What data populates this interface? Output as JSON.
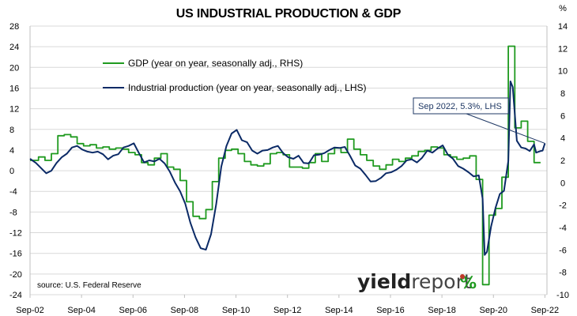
{
  "chart_data": {
    "type": "line",
    "title": "US INDUSTRIAL PRODUCTION & GDP",
    "right_axis_unit": "%",
    "y_left": {
      "range": [
        -24,
        28
      ],
      "ticks": [
        28,
        24,
        20,
        16,
        12,
        8,
        4,
        0,
        -4,
        -8,
        -12,
        -16,
        -20,
        -24
      ]
    },
    "y_right": {
      "range": [
        -10,
        14
      ],
      "ticks": [
        14,
        12,
        10,
        8,
        6,
        4,
        2,
        0,
        -2,
        -4,
        -6,
        -8,
        -10
      ]
    },
    "x_range": [
      2002.67,
      2022.75
    ],
    "x_ticks": [
      {
        "label": "Sep-02",
        "x": 2002.67
      },
      {
        "label": "Sep-04",
        "x": 2004.67
      },
      {
        "label": "Sep-06",
        "x": 2006.67
      },
      {
        "label": "Sep-08",
        "x": 2008.67
      },
      {
        "label": "Sep-10",
        "x": 2010.67
      },
      {
        "label": "Sep-12",
        "x": 2012.67
      },
      {
        "label": "Sep-14",
        "x": 2014.67
      },
      {
        "label": "Sep-16",
        "x": 2016.67
      },
      {
        "label": "Sep-18",
        "x": 2018.67
      },
      {
        "label": "Sep-20",
        "x": 2020.67
      },
      {
        "label": "Sep-22",
        "x": 2022.67
      }
    ],
    "grid": "horizontal",
    "legend_position": "top-left",
    "series": [
      {
        "name": "GDP (year on year, seasonally adj., RHS)",
        "axis": "right",
        "color": "#1f9a1f",
        "step": true,
        "points": [
          [
            2002.67,
            2.0
          ],
          [
            2003.0,
            2.3
          ],
          [
            2003.25,
            2.0
          ],
          [
            2003.5,
            2.6
          ],
          [
            2003.75,
            4.2
          ],
          [
            2004.0,
            4.3
          ],
          [
            2004.25,
            4.1
          ],
          [
            2004.5,
            3.5
          ],
          [
            2004.75,
            3.3
          ],
          [
            2005.0,
            3.4
          ],
          [
            2005.25,
            3.1
          ],
          [
            2005.5,
            3.2
          ],
          [
            2005.75,
            3.0
          ],
          [
            2006.0,
            3.1
          ],
          [
            2006.25,
            3.0
          ],
          [
            2006.5,
            2.7
          ],
          [
            2006.75,
            2.5
          ],
          [
            2007.0,
            1.8
          ],
          [
            2007.25,
            1.6
          ],
          [
            2007.5,
            2.2
          ],
          [
            2007.75,
            2.6
          ],
          [
            2008.0,
            1.4
          ],
          [
            2008.25,
            1.2
          ],
          [
            2008.5,
            0.2
          ],
          [
            2008.75,
            -1.7
          ],
          [
            2009.0,
            -3.0
          ],
          [
            2009.25,
            -3.2
          ],
          [
            2009.5,
            -2.4
          ],
          [
            2009.75,
            0.1
          ],
          [
            2010.0,
            2.2
          ],
          [
            2010.25,
            2.9
          ],
          [
            2010.5,
            3.0
          ],
          [
            2010.75,
            2.6
          ],
          [
            2011.0,
            1.9
          ],
          [
            2011.25,
            1.6
          ],
          [
            2011.5,
            1.5
          ],
          [
            2011.75,
            1.7
          ],
          [
            2012.0,
            2.6
          ],
          [
            2012.25,
            2.7
          ],
          [
            2012.5,
            2.5
          ],
          [
            2012.75,
            1.4
          ],
          [
            2013.0,
            1.4
          ],
          [
            2013.25,
            1.3
          ],
          [
            2013.5,
            1.8
          ],
          [
            2013.75,
            2.6
          ],
          [
            2014.0,
            1.9
          ],
          [
            2014.25,
            2.6
          ],
          [
            2014.5,
            3.1
          ],
          [
            2014.75,
            2.7
          ],
          [
            2015.0,
            3.9
          ],
          [
            2015.25,
            3.0
          ],
          [
            2015.5,
            2.5
          ],
          [
            2015.75,
            2.0
          ],
          [
            2016.0,
            1.5
          ],
          [
            2016.25,
            1.2
          ],
          [
            2016.5,
            1.6
          ],
          [
            2016.75,
            2.1
          ],
          [
            2017.0,
            1.9
          ],
          [
            2017.25,
            2.2
          ],
          [
            2017.5,
            2.4
          ],
          [
            2017.75,
            2.8
          ],
          [
            2018.0,
            2.9
          ],
          [
            2018.25,
            3.2
          ],
          [
            2018.5,
            3.1
          ],
          [
            2018.75,
            2.5
          ],
          [
            2019.0,
            2.3
          ],
          [
            2019.25,
            2.1
          ],
          [
            2019.5,
            2.2
          ],
          [
            2019.75,
            2.4
          ],
          [
            2020.0,
            0.3
          ],
          [
            2020.25,
            -9.1
          ],
          [
            2020.5,
            -2.9
          ],
          [
            2020.75,
            -2.3
          ],
          [
            2021.0,
            0.5
          ],
          [
            2021.25,
            12.2
          ],
          [
            2021.5,
            4.9
          ],
          [
            2021.75,
            5.5
          ],
          [
            2022.0,
            3.7
          ],
          [
            2022.25,
            1.8
          ],
          [
            2022.5,
            1.8
          ]
        ]
      },
      {
        "name": "Industrial production (year on year, seasonally adj., LHS)",
        "axis": "left",
        "color": "#0b2a66",
        "step": false,
        "points": [
          [
            2002.67,
            2.3
          ],
          [
            2002.9,
            1.5
          ],
          [
            2003.1,
            0.5
          ],
          [
            2003.3,
            -0.5
          ],
          [
            2003.5,
            0.0
          ],
          [
            2003.7,
            1.5
          ],
          [
            2003.9,
            2.6
          ],
          [
            2004.1,
            3.3
          ],
          [
            2004.3,
            4.5
          ],
          [
            2004.5,
            4.8
          ],
          [
            2004.7,
            4.1
          ],
          [
            2004.9,
            3.7
          ],
          [
            2005.1,
            3.5
          ],
          [
            2005.3,
            3.7
          ],
          [
            2005.5,
            3.2
          ],
          [
            2005.7,
            2.2
          ],
          [
            2005.9,
            2.9
          ],
          [
            2006.1,
            3.2
          ],
          [
            2006.3,
            4.5
          ],
          [
            2006.5,
            4.8
          ],
          [
            2006.7,
            5.3
          ],
          [
            2006.9,
            3.4
          ],
          [
            2007.1,
            1.6
          ],
          [
            2007.3,
            2.0
          ],
          [
            2007.5,
            1.8
          ],
          [
            2007.7,
            2.3
          ],
          [
            2007.9,
            1.4
          ],
          [
            2008.1,
            -0.2
          ],
          [
            2008.3,
            -2.3
          ],
          [
            2008.5,
            -4.0
          ],
          [
            2008.7,
            -6.4
          ],
          [
            2008.9,
            -10.1
          ],
          [
            2009.1,
            -12.9
          ],
          [
            2009.3,
            -15.0
          ],
          [
            2009.5,
            -15.3
          ],
          [
            2009.7,
            -12.3
          ],
          [
            2009.9,
            -6.5
          ],
          [
            2010.1,
            0.8
          ],
          [
            2010.3,
            4.8
          ],
          [
            2010.5,
            7.2
          ],
          [
            2010.7,
            7.9
          ],
          [
            2010.9,
            5.9
          ],
          [
            2011.1,
            5.5
          ],
          [
            2011.3,
            3.9
          ],
          [
            2011.5,
            3.3
          ],
          [
            2011.7,
            3.9
          ],
          [
            2011.9,
            4.0
          ],
          [
            2012.1,
            4.5
          ],
          [
            2012.3,
            4.8
          ],
          [
            2012.5,
            3.4
          ],
          [
            2012.7,
            2.6
          ],
          [
            2012.9,
            2.3
          ],
          [
            2013.1,
            2.9
          ],
          [
            2013.3,
            1.5
          ],
          [
            2013.5,
            1.4
          ],
          [
            2013.7,
            3.0
          ],
          [
            2013.9,
            3.1
          ],
          [
            2014.1,
            3.4
          ],
          [
            2014.3,
            4.0
          ],
          [
            2014.5,
            4.5
          ],
          [
            2014.7,
            4.4
          ],
          [
            2014.9,
            4.6
          ],
          [
            2015.1,
            2.9
          ],
          [
            2015.3,
            1.0
          ],
          [
            2015.5,
            0.4
          ],
          [
            2015.7,
            -0.8
          ],
          [
            2015.9,
            -2.1
          ],
          [
            2016.1,
            -2.0
          ],
          [
            2016.3,
            -1.4
          ],
          [
            2016.5,
            -0.5
          ],
          [
            2016.7,
            -0.3
          ],
          [
            2016.9,
            0.2
          ],
          [
            2017.1,
            0.9
          ],
          [
            2017.3,
            2.0
          ],
          [
            2017.5,
            2.2
          ],
          [
            2017.7,
            1.6
          ],
          [
            2017.9,
            2.5
          ],
          [
            2018.1,
            3.9
          ],
          [
            2018.3,
            3.5
          ],
          [
            2018.5,
            4.3
          ],
          [
            2018.7,
            4.9
          ],
          [
            2018.9,
            3.1
          ],
          [
            2019.1,
            2.3
          ],
          [
            2019.3,
            0.9
          ],
          [
            2019.5,
            0.4
          ],
          [
            2019.7,
            -0.3
          ],
          [
            2019.9,
            -1.1
          ],
          [
            2020.1,
            -0.9
          ],
          [
            2020.25,
            -5.4
          ],
          [
            2020.33,
            -16.3
          ],
          [
            2020.42,
            -15.7
          ],
          [
            2020.58,
            -10.8
          ],
          [
            2020.75,
            -7.2
          ],
          [
            2020.92,
            -4.5
          ],
          [
            2021.08,
            -3.9
          ],
          [
            2021.25,
            1.9
          ],
          [
            2021.33,
            17.3
          ],
          [
            2021.42,
            16.2
          ],
          [
            2021.58,
            5.8
          ],
          [
            2021.75,
            4.5
          ],
          [
            2021.92,
            4.3
          ],
          [
            2022.08,
            3.8
          ],
          [
            2022.25,
            5.1
          ],
          [
            2022.33,
            3.5
          ],
          [
            2022.5,
            3.8
          ],
          [
            2022.58,
            3.9
          ],
          [
            2022.67,
            5.3
          ]
        ]
      }
    ],
    "annotation": "Sep 2022, 5.3%, LHS",
    "source": "source: U.S. Federal Reserve",
    "brand": {
      "bold": "yield",
      "light": "report",
      "symbol": "%"
    }
  }
}
